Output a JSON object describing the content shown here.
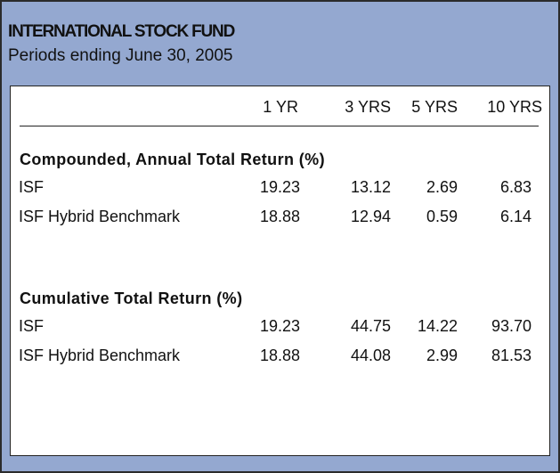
{
  "header": {
    "title": "INTERNATIONAL STOCK FUND",
    "subtitle": "Periods ending June 30, 2005"
  },
  "table": {
    "columns": [
      "1 YR",
      "3 YRS",
      "5 YRS",
      "10 YRS"
    ],
    "sections": [
      {
        "title": "Compounded, Annual Total Return (%)",
        "rows": [
          {
            "label": "ISF",
            "values": [
              "19.23",
              "13.12",
              "2.69",
              "6.83"
            ]
          },
          {
            "label": "ISF Hybrid Benchmark",
            "values": [
              "18.88",
              "12.94",
              "0.59",
              "6.14"
            ]
          }
        ]
      },
      {
        "title": "Cumulative Total Return (%)",
        "rows": [
          {
            "label": "ISF",
            "values": [
              "19.23",
              "44.75",
              "14.22",
              "93.70"
            ]
          },
          {
            "label": "ISF Hybrid Benchmark",
            "values": [
              "18.88",
              "44.08",
              "2.99",
              "81.53"
            ]
          }
        ]
      }
    ]
  }
}
